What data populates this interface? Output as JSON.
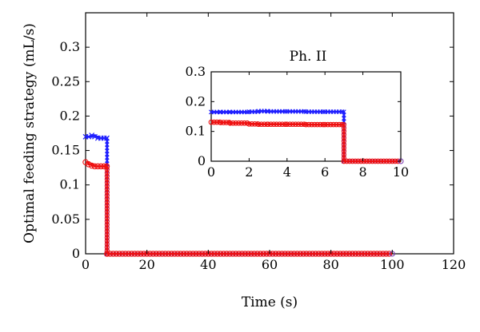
{
  "chart_data": [
    {
      "type": "line",
      "title": "",
      "xlabel": "Time (s)",
      "ylabel": "Optimal feeding strategy (mL/s)",
      "xlim": [
        0,
        120
      ],
      "ylim": [
        0,
        0.35
      ],
      "xticks": [
        0,
        20,
        40,
        60,
        80,
        100,
        120
      ],
      "yticks": [
        0,
        0.05,
        0.1,
        0.15,
        0.2,
        0.25,
        0.3
      ],
      "xtick_labels": [
        "0",
        "20",
        "40",
        "60",
        "80",
        "100",
        "120"
      ],
      "ytick_labels": [
        "0",
        "0.05",
        "0.1",
        "0.15",
        "0.2",
        "0.25",
        "0.3"
      ],
      "grid": false,
      "series": [
        {
          "color": "#1f1fff",
          "marker": "x",
          "x": [
            0,
            1,
            2,
            3,
            4,
            5,
            6,
            6.9,
            7,
            100
          ],
          "y": [
            0.17,
            0.17,
            0.172,
            0.17,
            0.168,
            0.168,
            0.168,
            0.168,
            0,
            0
          ]
        },
        {
          "color": "#ee1111",
          "marker": "o",
          "x": [
            0,
            1,
            2,
            3,
            4,
            5,
            6,
            6.9,
            7,
            100
          ],
          "y": [
            0.133,
            0.13,
            0.128,
            0.127,
            0.127,
            0.127,
            0.127,
            0.127,
            0,
            0
          ]
        }
      ]
    },
    {
      "type": "line",
      "title": "Ph. II",
      "xlabel": "",
      "ylabel": "",
      "xlim": [
        0,
        10
      ],
      "ylim": [
        0,
        0.3
      ],
      "xticks": [
        0,
        2,
        4,
        6,
        8,
        10
      ],
      "yticks": [
        0,
        0.1,
        0.2,
        0.3
      ],
      "xtick_labels": [
        "0",
        "2",
        "4",
        "6",
        "8",
        "10"
      ],
      "ytick_labels": [
        "0",
        "0.1",
        "0.2",
        "0.3"
      ],
      "grid": false,
      "series": [
        {
          "color": "#1f1fff",
          "marker": "x",
          "x": [
            0,
            0.5,
            1,
            2,
            2.5,
            3,
            4,
            5,
            6,
            6.9,
            7,
            10
          ],
          "y": [
            0.165,
            0.165,
            0.165,
            0.166,
            0.168,
            0.167,
            0.167,
            0.166,
            0.166,
            0.166,
            0,
            0
          ]
        },
        {
          "color": "#ee1111",
          "marker": "o",
          "x": [
            0,
            0.5,
            1,
            2,
            2.5,
            3,
            4,
            5,
            6,
            6.9,
            7,
            10
          ],
          "y": [
            0.131,
            0.13,
            0.128,
            0.125,
            0.124,
            0.124,
            0.124,
            0.123,
            0.123,
            0.123,
            0,
            0
          ]
        }
      ]
    }
  ]
}
